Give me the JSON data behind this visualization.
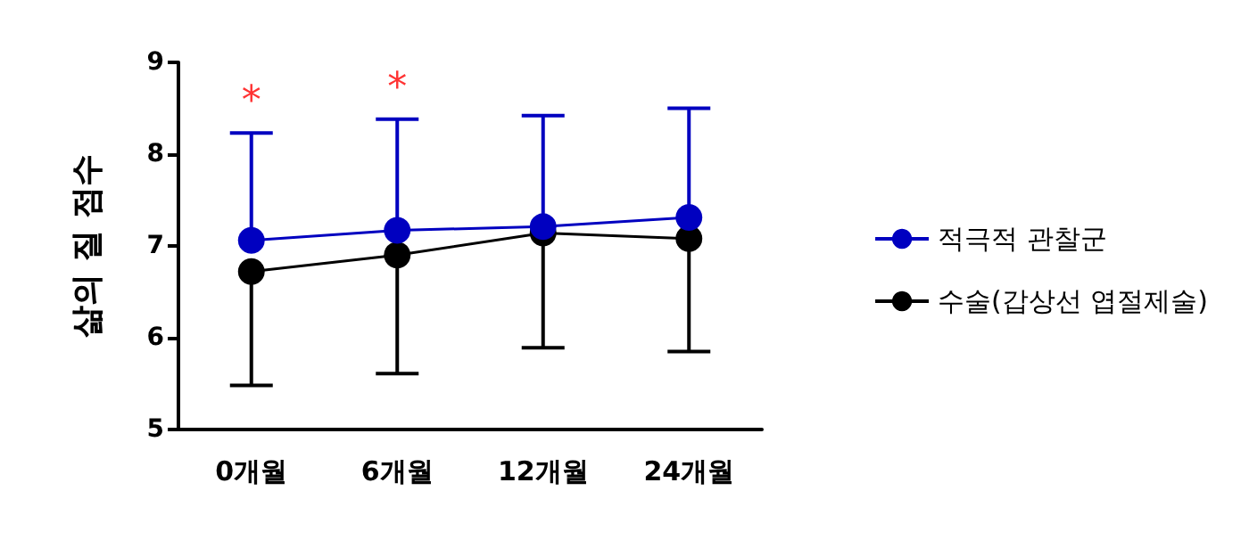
{
  "chart_data": {
    "type": "line",
    "ylabel": "삶의 질 점수",
    "categories": [
      "0개월",
      "6개월",
      "12개월",
      "24개월"
    ],
    "series": [
      {
        "name": "적극적 관찰군",
        "color": "#0000c0",
        "values": [
          7.06,
          7.17,
          7.21,
          7.31
        ],
        "errors": [
          [
            7.06,
            8.23
          ],
          [
            7.17,
            8.38
          ],
          [
            7.21,
            8.42
          ],
          [
            7.31,
            8.5
          ]
        ]
      },
      {
        "name": "수술(갑상선 엽절제술)",
        "color": "#000000",
        "values": [
          6.72,
          6.9,
          7.14,
          7.08
        ],
        "errors": [
          [
            5.48,
            6.72
          ],
          [
            5.61,
            6.9
          ],
          [
            5.89,
            7.14
          ],
          [
            5.85,
            7.08
          ]
        ]
      }
    ],
    "annotations": [
      "*",
      "*"
    ],
    "ylim": [
      5,
      9
    ],
    "yticks": [
      5,
      6,
      7,
      8,
      9
    ],
    "grid": false,
    "legend": "right",
    "marker": "circle",
    "line_style": "solid"
  }
}
